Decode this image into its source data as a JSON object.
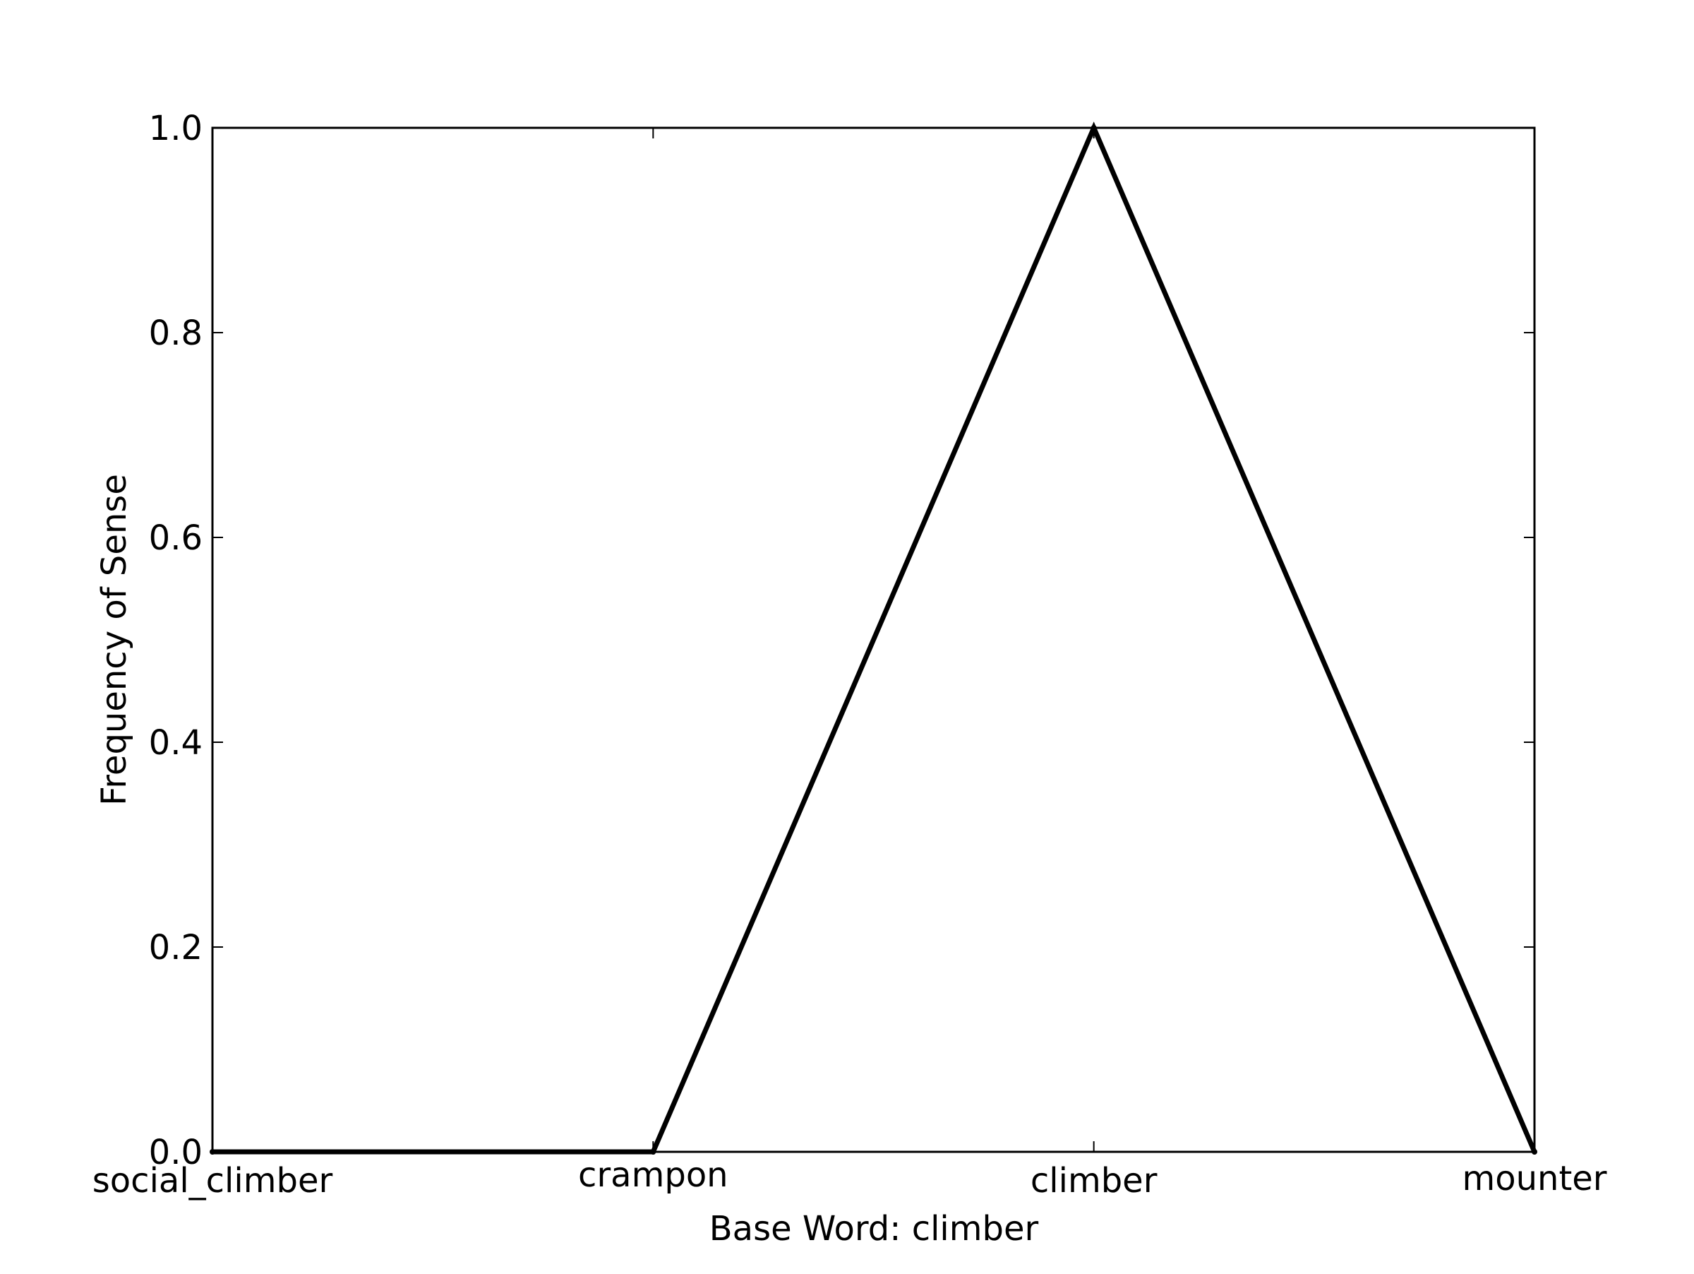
{
  "chart_data": {
    "type": "line",
    "categories": [
      "social_climber",
      "crampon",
      "climber",
      "mounter"
    ],
    "values": [
      0.0,
      0.0,
      1.0,
      0.0
    ],
    "title": "",
    "xlabel": "Base Word: climber",
    "ylabel": "Frequency of Sense",
    "ylim": [
      0.0,
      1.0
    ],
    "yticks": [
      "0.0",
      "0.2",
      "0.4",
      "0.6",
      "0.8",
      "1.0"
    ],
    "grid": false,
    "legend": "none",
    "line_color": "#000000",
    "axis_color": "#000000",
    "background": "#ffffff"
  }
}
